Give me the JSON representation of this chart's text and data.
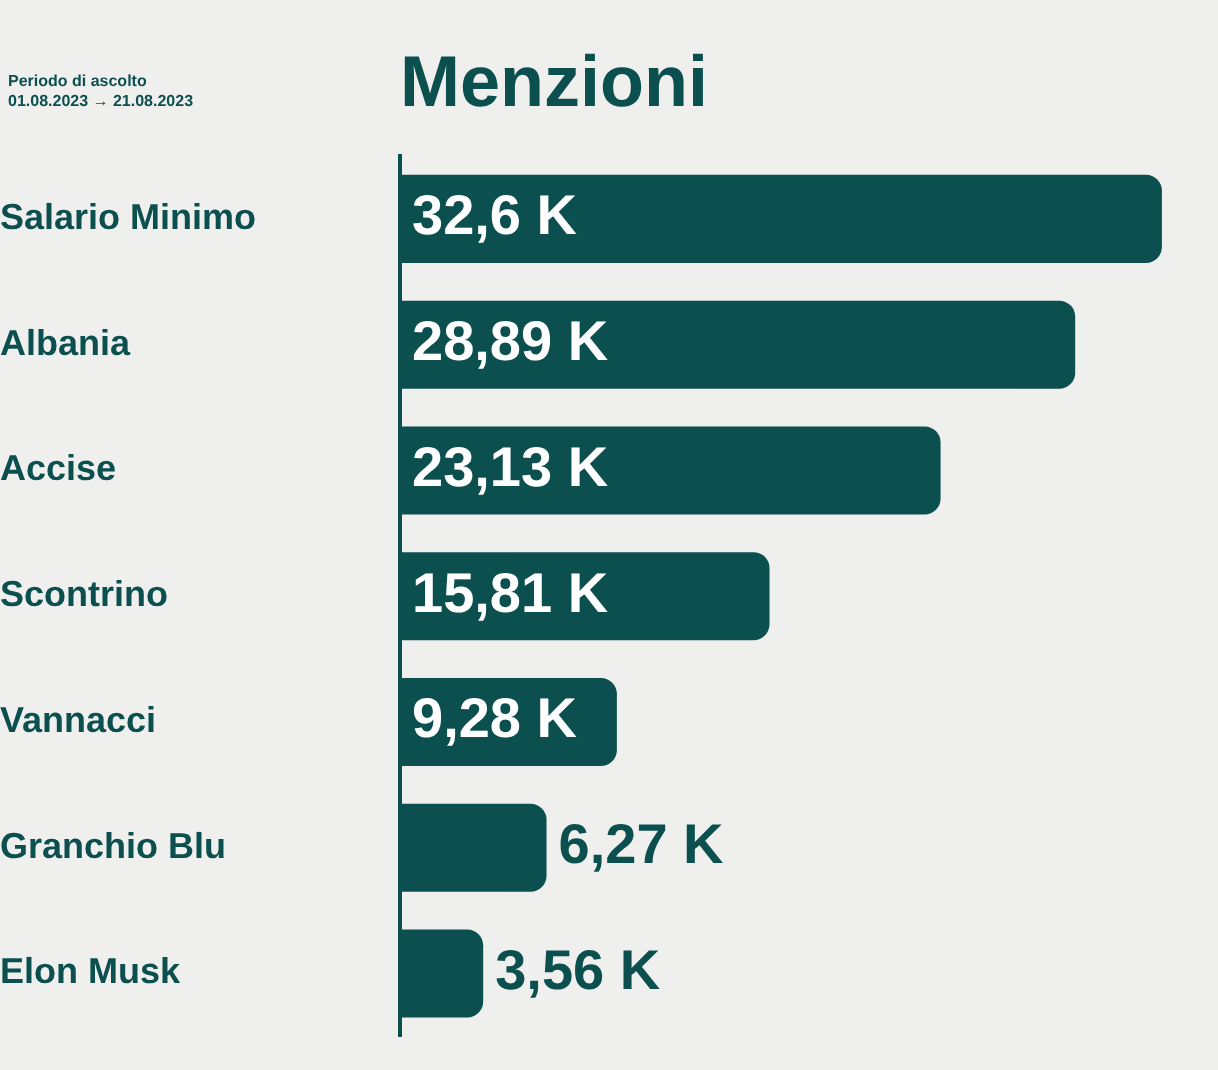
{
  "chart_data": {
    "type": "bar",
    "orientation": "horizontal",
    "title": "Menzioni",
    "annotations": [
      "Periodo di ascolto",
      "01.08.2023 → 21.08.2023"
    ],
    "categories": [
      "Salario Minimo",
      "Albania",
      "Accise",
      "Scontrino",
      "Vannacci",
      "Granchio Blu",
      "Elon Musk"
    ],
    "values": [
      32.6,
      28.89,
      23.13,
      15.81,
      9.28,
      6.27,
      3.56
    ],
    "value_labels": [
      "32,6 K",
      "28,89 K",
      "23,13 K",
      "15,81 K",
      "9,28 K",
      "6,27 K",
      "3,56 K"
    ],
    "color": "#0b4f4f",
    "legend": false,
    "grid": false
  }
}
